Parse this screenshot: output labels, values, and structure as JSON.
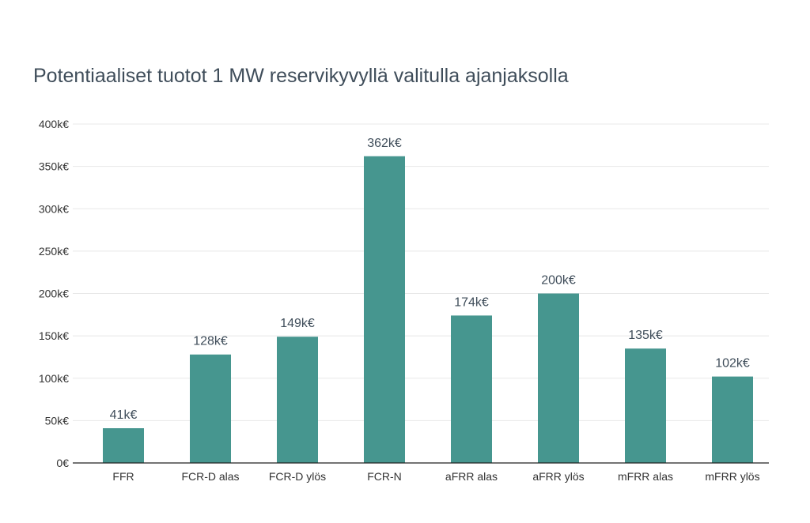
{
  "title": "Potentiaaliset tuotot 1 MW reservikyvyllä valitulla ajanjaksolla",
  "colors": {
    "bar": "#46968f",
    "grid": "#e8e8e8",
    "axis": "#222222"
  },
  "chart_data": {
    "type": "bar",
    "title": "Potentiaaliset tuotot 1 MW reservikyvyllä valitulla ajanjaksolla",
    "categories": [
      "FFR",
      "FCR-D alas",
      "FCR-D ylös",
      "FCR-N",
      "aFRR alas",
      "aFRR ylös",
      "mFRR alas",
      "mFRR ylös"
    ],
    "values": [
      41,
      128,
      149,
      362,
      174,
      200,
      135,
      102
    ],
    "value_labels": [
      "41k€",
      "128k€",
      "149k€",
      "362k€",
      "174k€",
      "200k€",
      "135k€",
      "102k€"
    ],
    "value_unit": "k€",
    "ylim": [
      0,
      400
    ],
    "y_ticks": [
      0,
      50,
      100,
      150,
      200,
      250,
      300,
      350,
      400
    ],
    "y_tick_labels": [
      "0€",
      "50k€",
      "100k€",
      "150k€",
      "200k€",
      "250k€",
      "300k€",
      "350k€",
      "400k€"
    ],
    "xlabel": "",
    "ylabel": "",
    "grid": true
  }
}
